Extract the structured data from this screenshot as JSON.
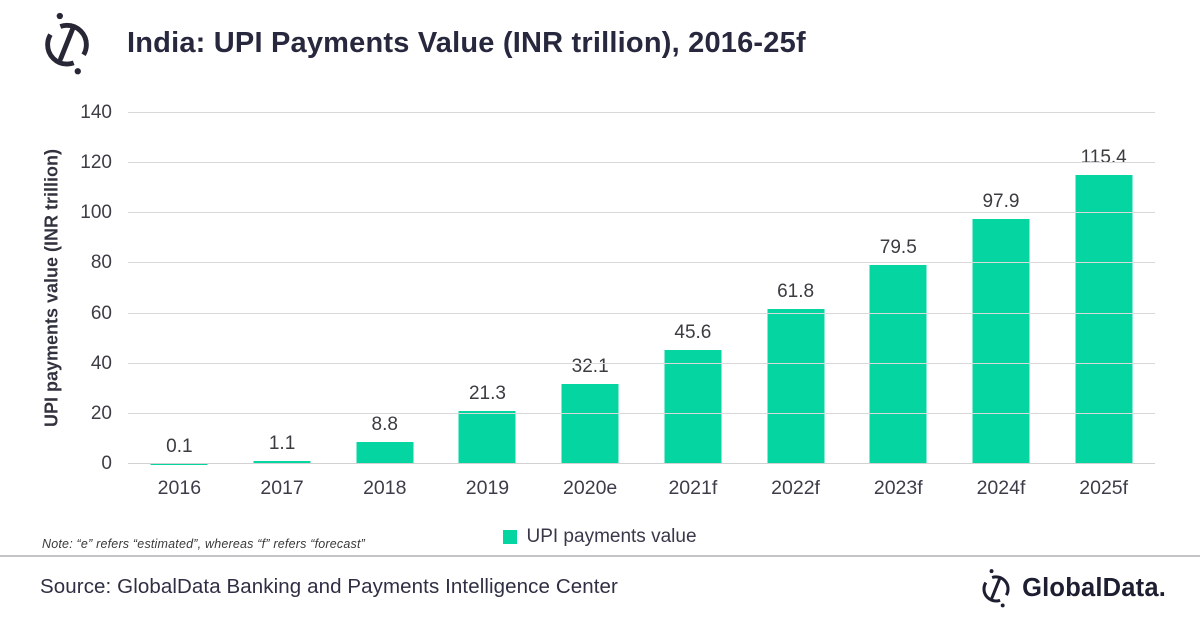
{
  "header": {
    "title": "India: UPI Payments Value (INR trillion), 2016-25f"
  },
  "chart_data": {
    "type": "bar",
    "categories": [
      "2016",
      "2017",
      "2018",
      "2019",
      "2020e",
      "2021f",
      "2022f",
      "2023f",
      "2024f",
      "2025f"
    ],
    "values": [
      0.1,
      1.1,
      8.8,
      21.3,
      32.1,
      45.6,
      61.8,
      79.5,
      97.9,
      115.4
    ],
    "title": "India: UPI Payments Value (INR trillion), 2016-25f",
    "xlabel": "",
    "ylabel": "UPI payments value (INR trillion)",
    "ylim": [
      0,
      140
    ],
    "yticks": [
      0,
      20,
      40,
      60,
      80,
      100,
      120,
      140
    ],
    "grid": true,
    "legend": [
      "UPI payments value"
    ],
    "legend_position": "bottom",
    "bar_color": "#05d6a1",
    "data_labels": true
  },
  "legend": {
    "label": "UPI payments value",
    "swatch_color": "#05d6a1"
  },
  "note": "Note: “e” refers “estimated”, whereas “f” refers “forecast”",
  "footer": {
    "source": "Source: GlobalData Banking and Payments Intelligence Center",
    "brand": "GlobalData."
  },
  "colors": {
    "bar": "#05d6a1",
    "title_text": "#27273e",
    "axis_text": "#3d3d46",
    "gridline": "#d9d9d9",
    "divider": "#c4c4c8",
    "logo_navy": "#272736"
  }
}
